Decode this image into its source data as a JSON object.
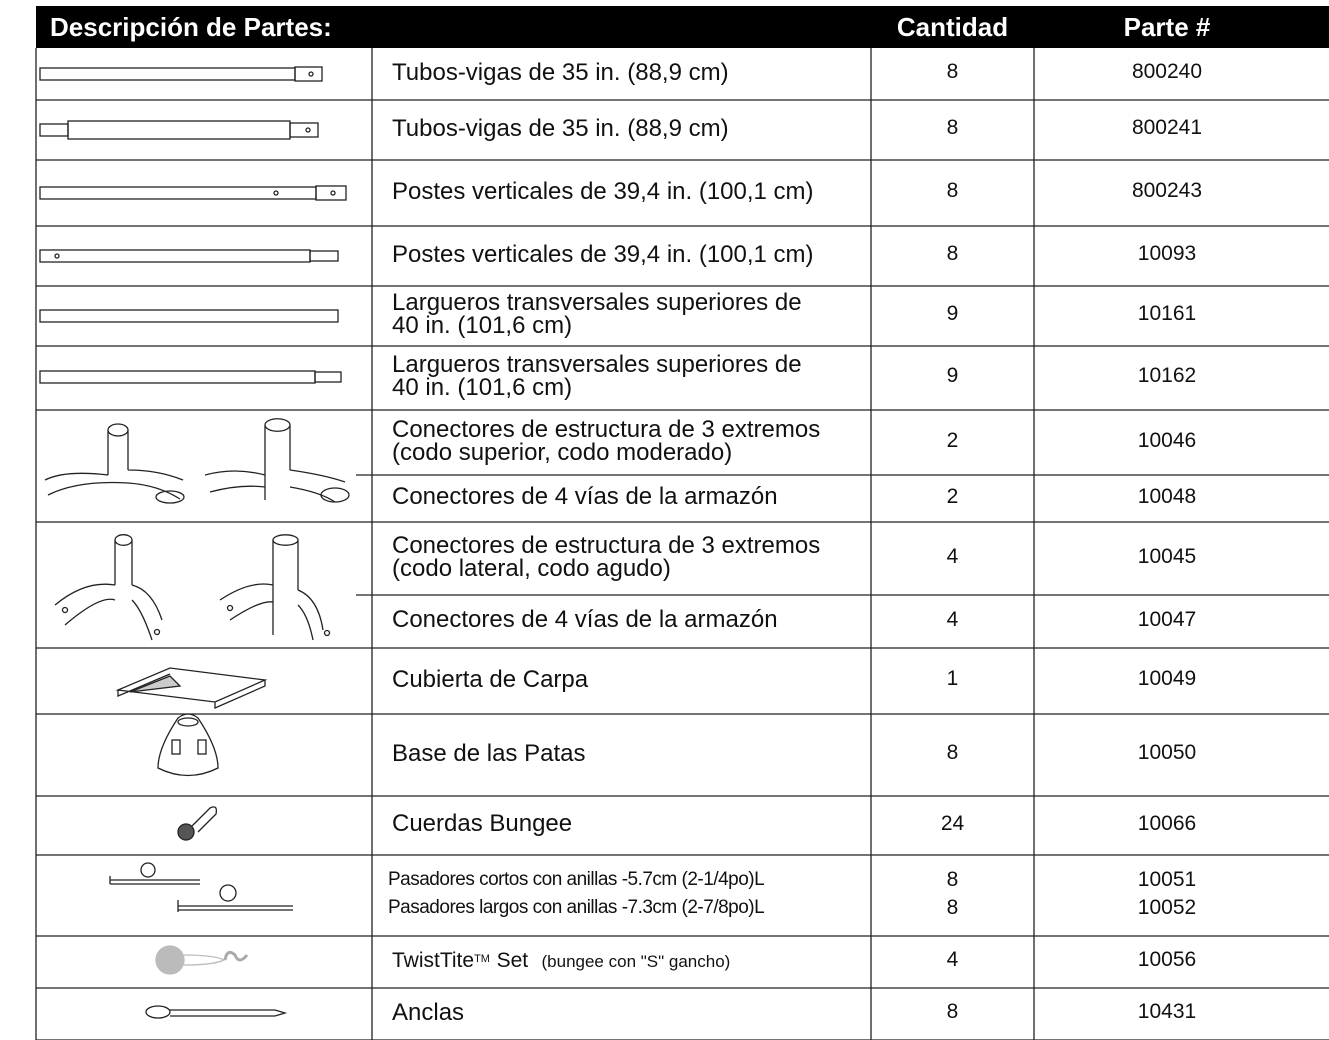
{
  "header": {
    "description": "Descripción de Partes:",
    "quantity": "Cantidad",
    "part": "Parte #"
  },
  "rows": [
    {
      "lines": [
        "Tubos-vigas de 35 in. (88,9 cm)"
      ],
      "quantity": "8",
      "part": "800240"
    },
    {
      "lines": [
        "Tubos-vigas de 35 in. (88,9 cm)"
      ],
      "quantity": "8",
      "part": "800241"
    },
    {
      "lines": [
        "Postes verticales de 39,4 in. (100,1 cm)"
      ],
      "quantity": "8",
      "part": "800243"
    },
    {
      "lines": [
        "Postes verticales de 39,4 in. (100,1 cm)"
      ],
      "quantity": "8",
      "part": "10093"
    },
    {
      "lines": [
        "Largueros transversales superiores de",
        "40 in. (101,6 cm)"
      ],
      "quantity": "9",
      "part": "10161"
    },
    {
      "lines": [
        "Largueros transversales superiores de",
        "40 in. (101,6 cm)"
      ],
      "quantity": "9",
      "part": "10162"
    },
    {
      "lines": [
        "Conectores de estructura de 3 extremos",
        "(codo superior, codo moderado)"
      ],
      "quantity": "2",
      "part": "10046"
    },
    {
      "lines": [
        "Conectores de 4 vías de la armazón"
      ],
      "quantity": "2",
      "part": "10048"
    },
    {
      "lines": [
        "Conectores de estructura de 3 extremos",
        "(codo lateral, codo agudo)"
      ],
      "quantity": "4",
      "part": "10045"
    },
    {
      "lines": [
        "Conectores de 4 vías de la armazón"
      ],
      "quantity": "4",
      "part": "10047"
    },
    {
      "lines": [
        "Cubierta de Carpa"
      ],
      "quantity": "1",
      "part": "10049"
    },
    {
      "lines": [
        "Base de las Patas"
      ],
      "quantity": "8",
      "part": "10050"
    },
    {
      "lines": [
        "Cuerdas Bungee"
      ],
      "quantity": "24",
      "part": "10066"
    },
    {
      "items": [
        {
          "description": "Pasadores cortos con anillas -5.7cm (2-1/4po)L",
          "quantity": "8",
          "part": "10051"
        },
        {
          "description": "Pasadores largos con anillas -7.3cm (2-7/8po)L",
          "quantity": "8",
          "part": "10052"
        }
      ]
    },
    {
      "name": "TwistTite",
      "mark": "TM",
      "name_suffix": "Set",
      "note": "(bungee con \"S\" gancho)",
      "quantity": "4",
      "part": "10056"
    },
    {
      "lines": [
        "Anclas"
      ],
      "quantity": "8",
      "part": "10431"
    }
  ]
}
